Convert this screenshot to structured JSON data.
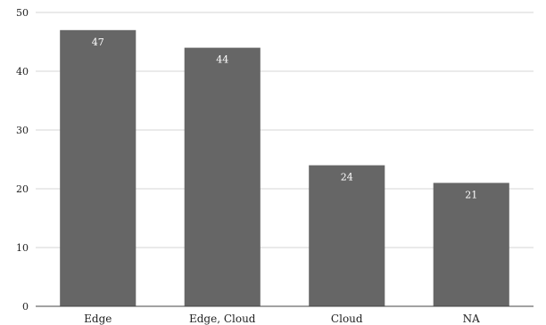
{
  "chart_data": {
    "type": "bar",
    "categories": [
      "Edge",
      "Edge, Cloud",
      "Cloud",
      "NA"
    ],
    "values": [
      47,
      44,
      24,
      21
    ],
    "data_labels": [
      "47",
      "44",
      "24",
      "21"
    ],
    "y_ticks": [
      0,
      10,
      20,
      30,
      40,
      50
    ],
    "ylim": [
      0,
      50
    ],
    "grid": true,
    "legend": "none",
    "title": "",
    "xlabel": "",
    "ylabel": "",
    "colors": {
      "bar": "#666666",
      "grid": "#d6d6d6",
      "label": "#ffffff"
    }
  }
}
